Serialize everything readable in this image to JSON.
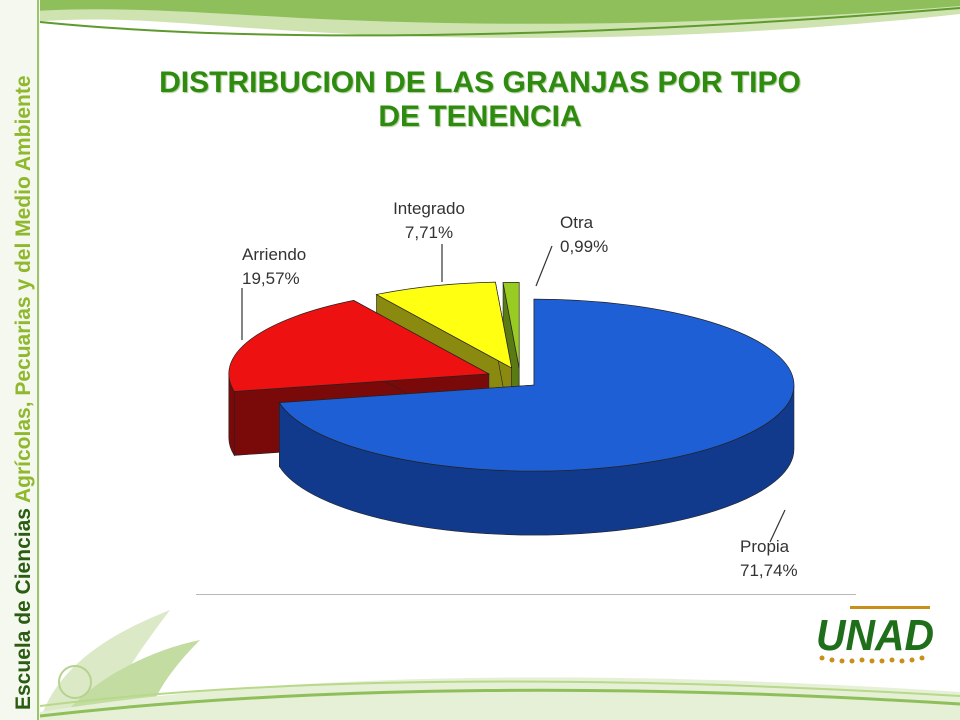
{
  "slide": {
    "title_line1": "DISTRIBUCION DE LAS GRANJAS POR TIPO",
    "title_line2": "DE TENENCIA",
    "side_text_prefix": "Escuela de Ciencias ",
    "side_text_highlight": "Agrícolas, Pecuarias y del Medio Ambiente",
    "logo_text": "UNAD"
  },
  "colors": {
    "title": "#2e8b10",
    "side_text_dark": "#2a5c12",
    "side_text_highlight": "#8fb82c",
    "logo_green": "#1f6f1a",
    "logo_gold": "#c8901a"
  },
  "chart_data": {
    "type": "pie",
    "style": "3d-exploded",
    "title": "",
    "labels": [
      "Propia",
      "Arriendo",
      "Integrado",
      "Otra"
    ],
    "values": [
      71.74,
      19.57,
      7.71,
      0.99
    ],
    "value_labels": [
      "71,74%",
      "19,57%",
      "7,71%",
      "0,99%"
    ],
    "colors": [
      "#1f5fd6",
      "#ee1111",
      "#ffff11",
      "#99cc22"
    ],
    "side_colors": [
      "#123a8c",
      "#7a0a0a",
      "#8a8a10",
      "#5a7a14"
    ]
  }
}
